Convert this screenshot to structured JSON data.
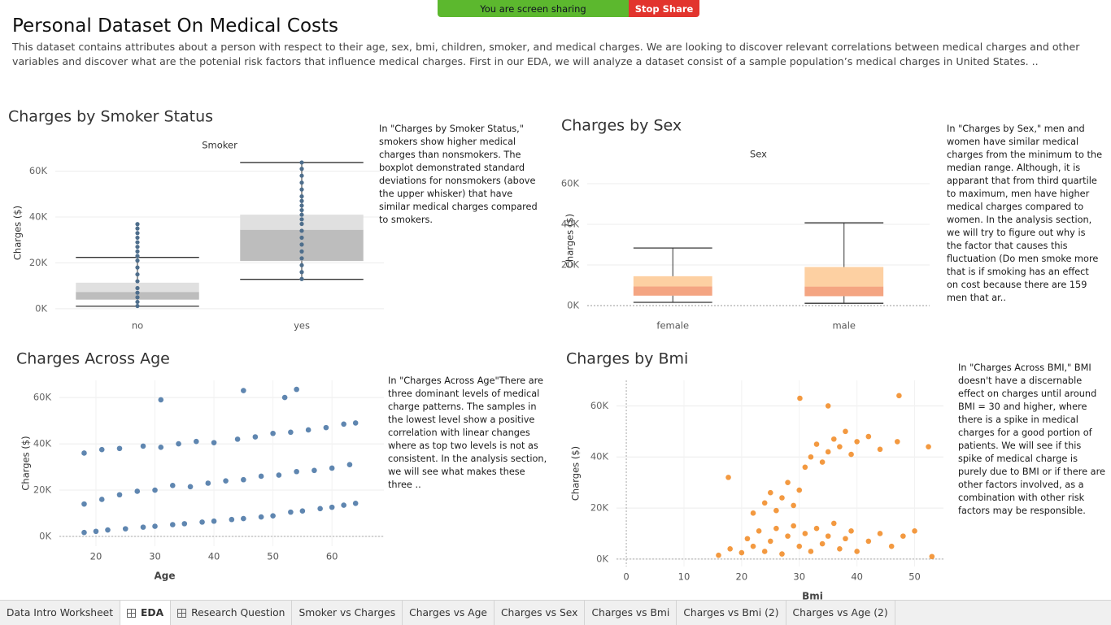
{
  "banner": {
    "sharing": "You are screen sharing",
    "stop": "Stop Share"
  },
  "header": {
    "title": "Personal Dataset On Medical Costs",
    "description": "This dataset contains attributes about a person with respect to their age, sex, bmi, children, smoker, and medical charges. We are looking to discover relevant correlations between medical charges and other variables and discover what are the potenial risk factors that influence medical charges. First in our EDA, we will analyze a dataset consist of a sample population’s medical charges in United States. .."
  },
  "chart_data": [
    {
      "type": "box",
      "title": "Charges by Smoker Status",
      "header": "Smoker",
      "y_label": "Charges ($)",
      "annotation": "In \"Charges by Smoker Status,\" smokers show higher medical charges than nonsmokers. The boxplot demonstrated standard deviations for nonsmokers (above the upper whisker) that have similar medical charges compared to smokers.",
      "categories": [
        "no",
        "yes"
      ],
      "boxes": [
        {
          "min": 1122,
          "q1": 3986,
          "median": 7345,
          "q3": 11363,
          "max": 22400,
          "points": [
            1200,
            3000,
            5000,
            7000,
            9000,
            12000,
            15000,
            18000,
            21000,
            23000,
            25000,
            27000,
            29000,
            31000,
            33000,
            35000,
            36900
          ]
        },
        {
          "min": 12829,
          "q1": 20826,
          "median": 34456,
          "q3": 41019,
          "max": 63770,
          "points": [
            13000,
            16000,
            19000,
            22000,
            25000,
            28000,
            31000,
            34000,
            37000,
            39000,
            41000,
            43000,
            45000,
            47000,
            49000,
            52000,
            55000,
            58000,
            61000,
            63770
          ]
        }
      ],
      "colors": {
        "lower": "#bdbdbd",
        "upper": "#e0e0e0",
        "whisker": "#333333",
        "points": "#4e6e8c"
      },
      "ylim": [
        -1800,
        68000
      ],
      "yticks": [
        {
          "value": 0,
          "label": "0K"
        },
        {
          "value": 20000,
          "label": "20K"
        },
        {
          "value": 40000,
          "label": "40K"
        },
        {
          "value": 60000,
          "label": "60K"
        }
      ],
      "grid": true
    },
    {
      "type": "box",
      "title": "Charges by Sex",
      "header": "Sex",
      "y_label": "Charges ($)",
      "annotation": "In \"Charges by Sex,\" men and women have similar medical charges from the minimum to the median range. Although, it is apparant that from third quartile to maximum, men have higher medical charges compared to women. In the analysis section, we will try to figure out why is the factor that causes this fluctuation (Do men smoke more that is if smoking has an effect on cost because there are 159 men that ar..",
      "categories": [
        "female",
        "male"
      ],
      "boxes": [
        {
          "min": 1608,
          "q1": 4885,
          "median": 9412,
          "q3": 14454,
          "max": 28340
        },
        {
          "min": 1121,
          "q1": 4619,
          "median": 9369,
          "q3": 18989,
          "max": 40720
        }
      ],
      "colors": {
        "lower": "#f4a582",
        "upper": "#fdd0a2",
        "whisker": "#333333"
      },
      "ylim": [
        -3600,
        67200
      ],
      "yticks": [
        {
          "value": 0,
          "label": "0K"
        },
        {
          "value": 20000,
          "label": "20K"
        },
        {
          "value": 40000,
          "label": "40K"
        },
        {
          "value": 60000,
          "label": "60K"
        }
      ],
      "grid": true
    },
    {
      "type": "scatter",
      "title": "Charges Across Age",
      "x_label": "Age",
      "y_label": "Charges ($)",
      "annotation": "In \"Charges Across Age\"There are three dominant levels of medical charge patterns. The samples in the lowest level show a positive correlation with linear changes where as top two levels is not as consistent. In the analysis section, we will see what makes these three ..",
      "x": [
        18,
        20,
        22,
        25,
        28,
        30,
        33,
        35,
        38,
        40,
        43,
        45,
        48,
        50,
        53,
        55,
        58,
        60,
        62,
        64,
        18,
        21,
        24,
        27,
        30,
        33,
        36,
        39,
        42,
        45,
        48,
        51,
        54,
        57,
        60,
        63,
        18,
        21,
        24,
        28,
        31,
        34,
        37,
        40,
        44,
        47,
        50,
        53,
        56,
        59,
        62,
        64,
        31,
        45,
        52,
        54
      ],
      "values": [
        1700,
        2200,
        2800,
        3300,
        4000,
        4400,
        5100,
        5500,
        6200,
        6600,
        7300,
        7700,
        8400,
        8900,
        10500,
        11000,
        12000,
        12600,
        13500,
        14300,
        14000,
        16000,
        18000,
        19500,
        20000,
        22000,
        21500,
        23000,
        24000,
        24500,
        26000,
        26500,
        28000,
        28500,
        29500,
        31000,
        36000,
        37500,
        38000,
        39000,
        38500,
        40000,
        41000,
        40500,
        42000,
        43000,
        44500,
        45000,
        46000,
        47000,
        48500,
        49000,
        59000,
        63000,
        60000,
        63500
      ],
      "color": "#4e79a7",
      "xlim": [
        13.8,
        68.8
      ],
      "xticks": [
        20,
        30,
        40,
        50,
        60
      ],
      "ylim": [
        -4200,
        67400
      ],
      "yticks": [
        {
          "value": 0,
          "label": "0K"
        },
        {
          "value": 20000,
          "label": "20K"
        },
        {
          "value": 40000,
          "label": "40K"
        },
        {
          "value": 60000,
          "label": "60K"
        }
      ],
      "grid": true
    },
    {
      "type": "scatter",
      "title": "Charges by Bmi",
      "x_label": "Bmi",
      "y_label": "Charges ($)",
      "annotation": "In \"Charges Across BMI,\" BMI doesn't have a discernable effect on charges until around BMI = 30 and higher, where there is a spike in medical charges for a good portion of patients. We will see if this spike of medical charge is purely due to BMI or if there are other factors involved, as a combination with other risk factors may be responsible.",
      "x": [
        16,
        18,
        20,
        21,
        22,
        23,
        24,
        25,
        26,
        27,
        28,
        29,
        30,
        31,
        32,
        33,
        34,
        35,
        36,
        37,
        38,
        39,
        40,
        42,
        44,
        46,
        48,
        50,
        53,
        22,
        24,
        25,
        26,
        27,
        28,
        29,
        30,
        17.7,
        31,
        32,
        33,
        34,
        35,
        36,
        37,
        38,
        39,
        40,
        42,
        44,
        47,
        47.3,
        30.1,
        35,
        52.4
      ],
      "values": [
        1500,
        4000,
        2500,
        8000,
        5000,
        11000,
        3000,
        7000,
        12000,
        2000,
        9000,
        13000,
        5000,
        10000,
        3000,
        12000,
        6000,
        9000,
        14000,
        4000,
        8000,
        11000,
        3000,
        7000,
        10000,
        5000,
        9000,
        11000,
        1000,
        18000,
        22000,
        26000,
        19000,
        24000,
        30000,
        21000,
        27000,
        32000,
        36000,
        40000,
        45000,
        38000,
        42000,
        47000,
        44000,
        50000,
        41000,
        46000,
        48000,
        43000,
        46000,
        64000,
        63000,
        60000,
        44000
      ],
      "color": "#f28e2b",
      "xlim": [
        -1.7,
        55
      ],
      "xticks": [
        0,
        10,
        20,
        30,
        40,
        50
      ],
      "ylim": [
        -2900,
        70000
      ],
      "yticks": [
        {
          "value": 0,
          "label": "0K"
        },
        {
          "value": 20000,
          "label": "20K"
        },
        {
          "value": 40000,
          "label": "40K"
        },
        {
          "value": 60000,
          "label": "60K"
        }
      ],
      "grid": true
    }
  ],
  "tabs": [
    "Data Intro Worksheet",
    "EDA",
    "Research Question",
    "Smoker vs Charges",
    "Charges vs Age",
    "Charges vs Sex",
    "Charges vs Bmi",
    "Charges vs Bmi (2)",
    "Charges vs Age (2)"
  ],
  "active_tab": "EDA"
}
